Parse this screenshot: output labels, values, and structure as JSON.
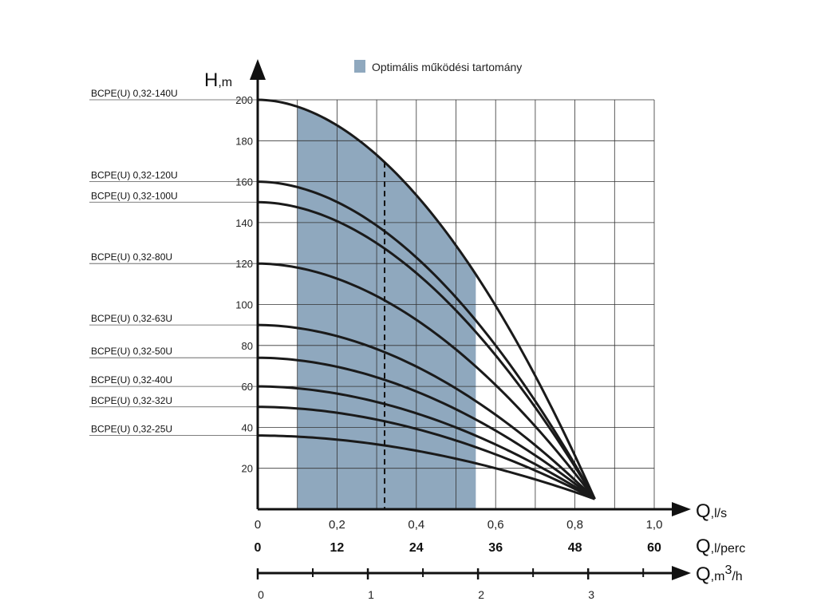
{
  "chart_data": {
    "type": "line",
    "legend": {
      "label": "Optimális működési tartomány",
      "color": "#8fa8be",
      "position": "top"
    },
    "y_axis": {
      "label_main": "H",
      "label_unit": ",m",
      "range": [
        0,
        200
      ],
      "ticks": [
        "20",
        "40",
        "60",
        "80",
        "100",
        "120",
        "140",
        "160",
        "180",
        "200"
      ]
    },
    "x_axis_ls": {
      "label_main": "Q",
      "label_unit": ",l/s",
      "range": [
        0,
        1.0
      ],
      "ticks": [
        "0",
        "0,2",
        "0,4",
        "0,6",
        "0,8",
        "1,0"
      ]
    },
    "x_axis_lperc": {
      "label_main": "Q",
      "label_unit": ",l/perc",
      "ticks": [
        "0",
        "12",
        "24",
        "36",
        "48",
        "60"
      ]
    },
    "x_axis_m3h": {
      "label_main": "Q",
      "label_unit": ",m",
      "label_sup": "3",
      "label_tail": "/h",
      "ticks": [
        "0",
        "1",
        "2",
        "3"
      ]
    },
    "optimal_range_ls": [
      0.1,
      0.55
    ],
    "nominal_flow_ls": 0.32,
    "grid": true,
    "series": [
      {
        "name": "BCPE(U) 0,32-140U",
        "shutoff_head": 200
      },
      {
        "name": "BCPE(U) 0,32-120U",
        "shutoff_head": 160
      },
      {
        "name": "BCPE(U) 0,32-100U",
        "shutoff_head": 150
      },
      {
        "name": "BCPE(U) 0,32-80U",
        "shutoff_head": 120
      },
      {
        "name": "BCPE(U) 0,32-63U",
        "shutoff_head": 90
      },
      {
        "name": "BCPE(U) 0,32-50U",
        "shutoff_head": 74
      },
      {
        "name": "BCPE(U) 0,32-40U",
        "shutoff_head": 60
      },
      {
        "name": "BCPE(U) 0,32-32U",
        "shutoff_head": 50
      },
      {
        "name": "BCPE(U) 0,32-25U",
        "shutoff_head": 36
      }
    ],
    "max_flow_ls": 0.85,
    "head_at_max_flow": 5,
    "curve_color": "#1a1a1a"
  }
}
